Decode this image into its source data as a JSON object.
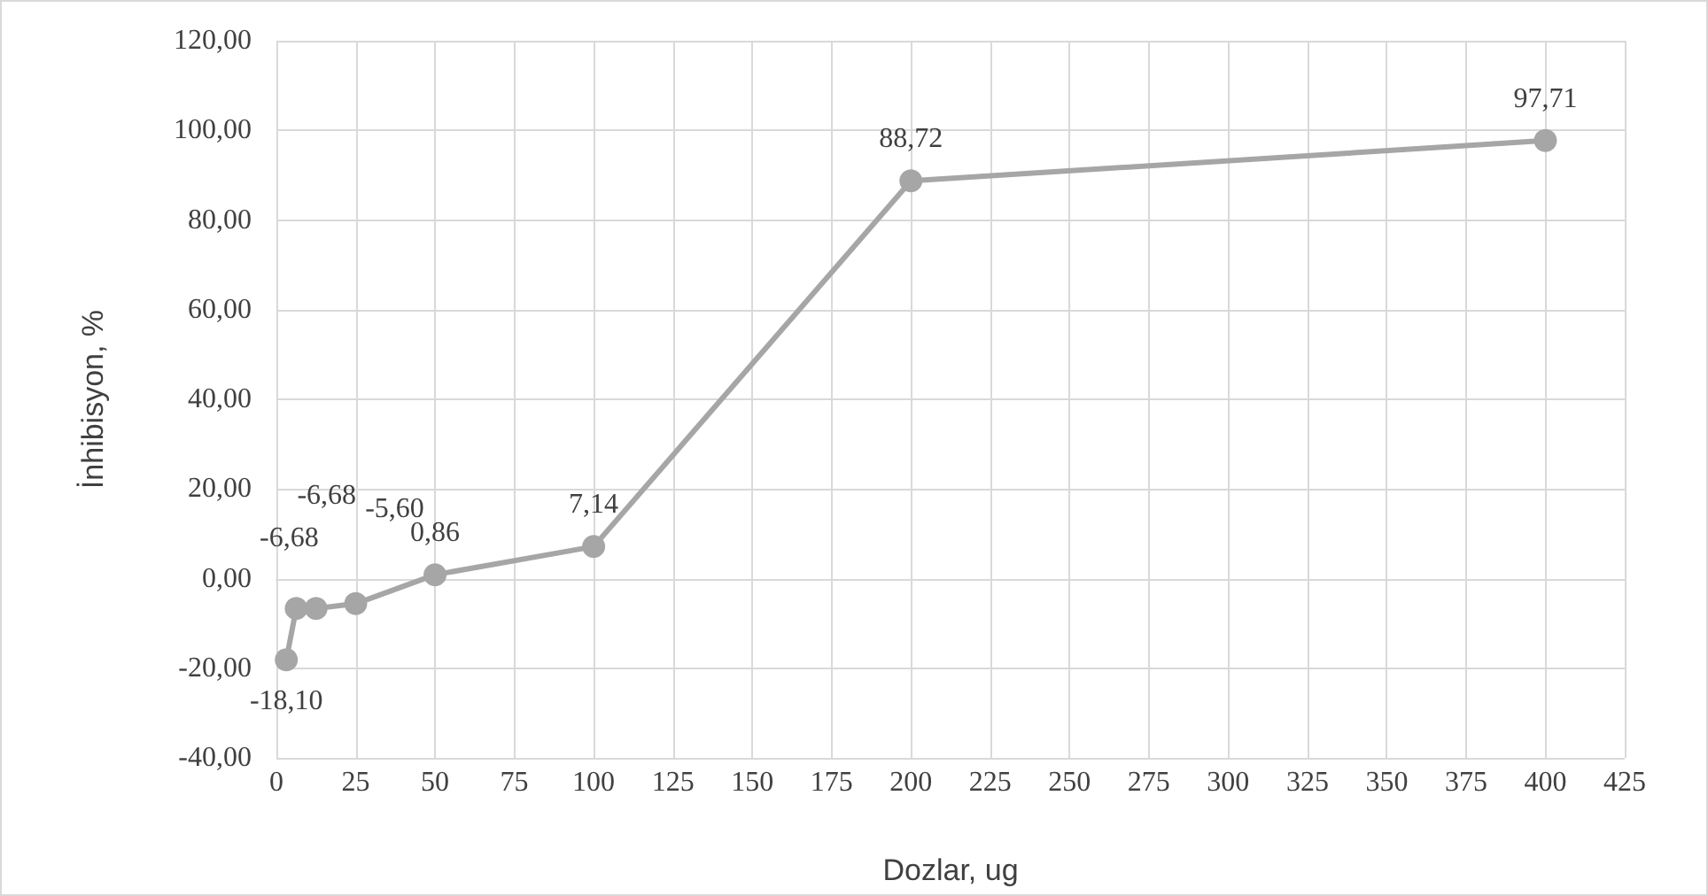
{
  "chart_data": {
    "type": "line",
    "xlabel": "Dozlar, ug",
    "ylabel": "İnhibisyon, %",
    "x": [
      3.125,
      6.25,
      12.5,
      25,
      50,
      100,
      200,
      400
    ],
    "series": [
      {
        "color": "#a6a6a6",
        "values": [
          -18.1,
          -6.68,
          -6.68,
          -5.6,
          0.86,
          7.14,
          88.72,
          97.71
        ],
        "value_labels": [
          "-18,10",
          "-6,68",
          "-6,68",
          "-5,60",
          "0,86",
          "7,14",
          "88,72",
          "97,71"
        ]
      }
    ],
    "xlim": [
      0,
      425
    ],
    "xticks": [
      0,
      25,
      50,
      75,
      100,
      125,
      150,
      175,
      200,
      225,
      250,
      275,
      300,
      325,
      350,
      375,
      400,
      425
    ],
    "ylim": [
      -40,
      120
    ],
    "yticks": [
      {
        "value": -40,
        "label": "-40,00"
      },
      {
        "value": -20,
        "label": "-20,00"
      },
      {
        "value": 0,
        "label": "0,00"
      },
      {
        "value": 20,
        "label": "20,00"
      },
      {
        "value": 40,
        "label": "40,00"
      },
      {
        "value": 60,
        "label": "60,00"
      },
      {
        "value": 80,
        "label": "80,00"
      },
      {
        "value": 100,
        "label": "100,00"
      },
      {
        "value": 120,
        "label": "120,00"
      }
    ],
    "grid": true,
    "marker": "circle",
    "line_style": "solid"
  }
}
